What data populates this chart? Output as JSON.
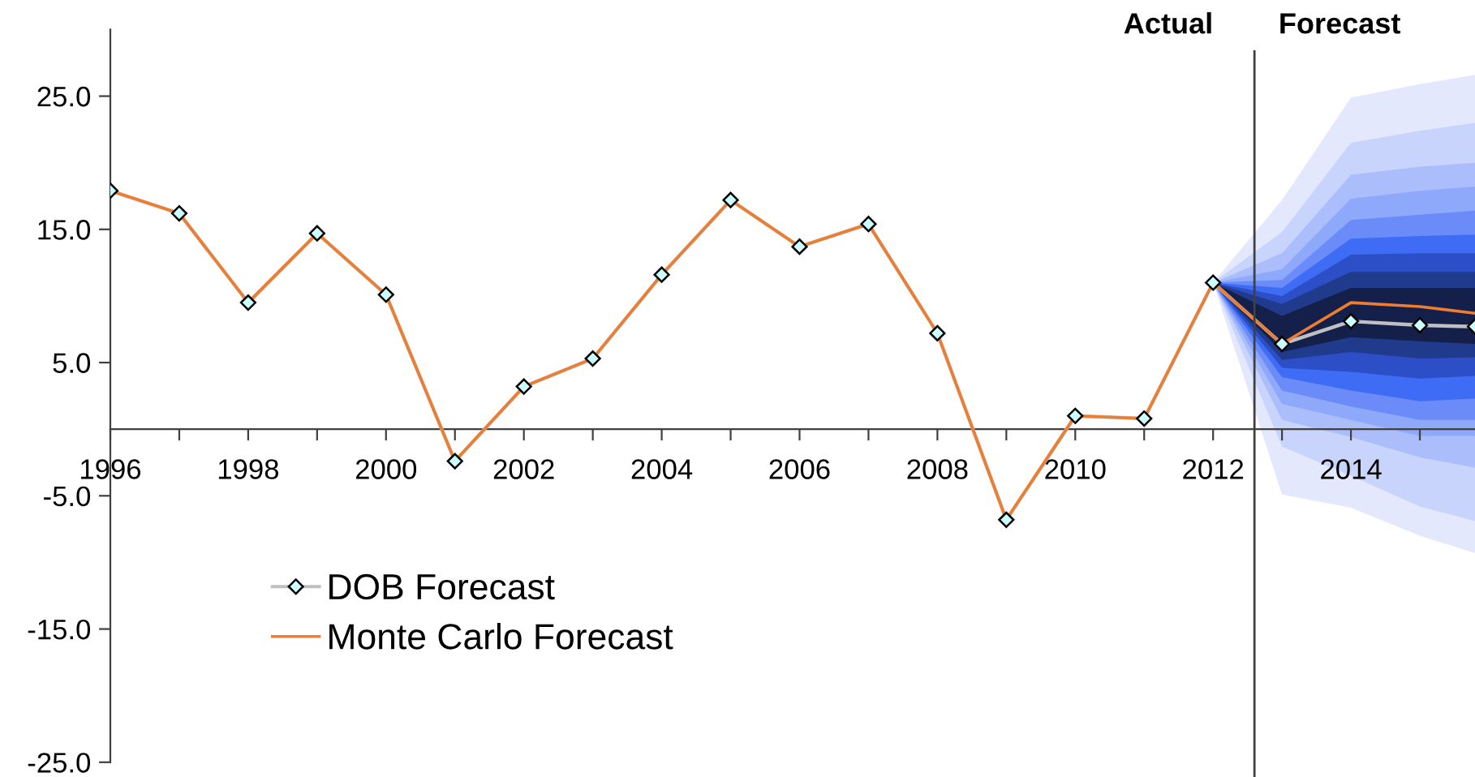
{
  "chart_data": {
    "type": "line",
    "x": [
      1996,
      1997,
      1998,
      1999,
      2000,
      2001,
      2002,
      2003,
      2004,
      2005,
      2006,
      2007,
      2008,
      2009,
      2010,
      2011,
      2012,
      2013,
      2014,
      2015,
      2015.8
    ],
    "series": [
      {
        "color": "#e3e8fd",
        "x": [
          2012,
          2013,
          2014,
          2015,
          2015.8
        ],
        "values": [
          null,
          null,
          null,
          null,
          null
        ],
        "upper": [
          11.0,
          17.2,
          24.9,
          25.9,
          26.6
        ],
        "lower": [
          11.0,
          -4.9,
          -5.9,
          -8.0,
          -9.3
        ]
      },
      {
        "color": "#c9d4fc",
        "x": [
          2012,
          2013,
          2014,
          2015,
          2015.8
        ],
        "values": [
          null,
          null,
          null,
          null,
          null
        ],
        "upper": [
          11.0,
          14.8,
          21.5,
          22.4,
          23.0
        ],
        "lower": [
          11.0,
          -1.3,
          -3.5,
          -5.8,
          -6.9
        ]
      },
      {
        "color": "#abbdfb",
        "x": [
          2012,
          2013,
          2014,
          2015,
          2015.8
        ],
        "values": [
          null,
          null,
          null,
          null,
          null
        ],
        "upper": [
          11.0,
          13.2,
          19.1,
          19.7,
          20.0
        ],
        "lower": [
          11.0,
          0.7,
          -0.6,
          -2.1,
          -2.9
        ]
      },
      {
        "color": "#8ea8fa",
        "x": [
          2012,
          2013,
          2014,
          2015,
          2015.8
        ],
        "values": [
          null,
          null,
          null,
          null,
          null
        ],
        "upper": [
          11.0,
          12.0,
          17.3,
          17.9,
          18.2
        ],
        "lower": [
          11.0,
          1.9,
          0.7,
          -0.5,
          -0.5
        ]
      },
      {
        "color": "#6b8cf8",
        "x": [
          2012,
          2013,
          2014,
          2015,
          2015.8
        ],
        "values": [
          null,
          null,
          null,
          null,
          null
        ],
        "upper": [
          11.0,
          11.2,
          15.7,
          16.1,
          16.4
        ],
        "lower": [
          11.0,
          2.9,
          1.7,
          0.7,
          0.7
        ]
      },
      {
        "color": "#3f6cf4",
        "x": [
          2012,
          2013,
          2014,
          2015,
          2015.8
        ],
        "values": [
          null,
          null,
          null,
          null,
          null
        ],
        "upper": [
          11.0,
          10.6,
          14.3,
          14.5,
          14.6
        ],
        "lower": [
          11.0,
          3.9,
          2.9,
          2.1,
          2.3
        ]
      },
      {
        "color": "#2c4fc8",
        "x": [
          2012,
          2013,
          2014,
          2015,
          2015.8
        ],
        "values": [
          null,
          null,
          null,
          null,
          null
        ],
        "upper": [
          11.0,
          10.0,
          13.1,
          13.2,
          13.2
        ],
        "lower": [
          11.0,
          4.6,
          4.3,
          3.8,
          4.0
        ]
      },
      {
        "color": "#203b8c",
        "x": [
          2012,
          2013,
          2014,
          2015,
          2015.8
        ],
        "values": [
          null,
          null,
          null,
          null,
          null
        ],
        "upper": [
          11.0,
          9.4,
          11.8,
          11.8,
          11.8
        ],
        "lower": [
          11.0,
          5.2,
          5.8,
          5.3,
          5.4
        ]
      },
      {
        "color": "#141f4a",
        "x": [
          2012,
          2013,
          2014,
          2015,
          2015.8
        ],
        "values": [
          null,
          null,
          null,
          null,
          null
        ],
        "upper": [
          11.0,
          8.5,
          10.6,
          10.6,
          10.6
        ],
        "lower": [
          11.0,
          5.8,
          6.9,
          6.6,
          6.4
        ]
      },
      {
        "name": "DOB Forecast",
        "type": "line",
        "color": "#c0c0c0",
        "marker": "diamond",
        "values": [
          17.9,
          16.2,
          9.5,
          14.7,
          10.1,
          -2.4,
          3.2,
          5.3,
          11.6,
          17.2,
          13.7,
          15.4,
          7.2,
          -6.8,
          1.0,
          0.8,
          11.0,
          6.4,
          8.1,
          7.8,
          7.7
        ]
      },
      {
        "name": "Monte Carlo Forecast",
        "type": "line",
        "color": "#ed7d31",
        "marker": "none",
        "values": [
          17.9,
          16.2,
          9.5,
          14.7,
          10.1,
          -2.4,
          3.2,
          5.3,
          11.6,
          17.2,
          13.7,
          15.4,
          7.2,
          -6.8,
          1.0,
          0.8,
          11.0,
          6.4,
          9.5,
          9.2,
          8.7
        ]
      }
    ],
    "xlim": [
      1996,
      2015.8
    ],
    "xticks": [
      1996,
      {
        "value": 1997,
        "label": null
      },
      1998,
      {
        "value": 1999,
        "label": null
      },
      2000,
      {
        "value": 2001,
        "label": null
      },
      2002,
      {
        "value": 2003,
        "label": null
      },
      2004,
      {
        "value": 2005,
        "label": null
      },
      2006,
      {
        "value": 2007,
        "label": null
      },
      2008,
      {
        "value": 2009,
        "label": null
      },
      2010,
      {
        "value": 2011,
        "label": null
      },
      2012,
      {
        "value": 2013,
        "label": null
      },
      2014,
      {
        "value": 2015,
        "label": null
      }
    ],
    "ylim": [
      -25,
      30
    ],
    "yticks": [
      {
        "value": -25,
        "label": "-25.0"
      },
      {
        "value": -15,
        "label": "-15.0"
      },
      {
        "value": -5,
        "label": "-5.0"
      },
      {
        "value": 5,
        "label": "5.0"
      },
      {
        "value": 15,
        "label": "15.0"
      },
      {
        "value": 25,
        "label": "25.0"
      }
    ],
    "ref_lines": [
      {
        "axis": "x",
        "value": 2012.6,
        "color": "#404040",
        "line_style": "solid"
      }
    ],
    "annotations": [
      "Actual",
      "Forecast"
    ],
    "legend": "bottom left",
    "grid": false
  }
}
